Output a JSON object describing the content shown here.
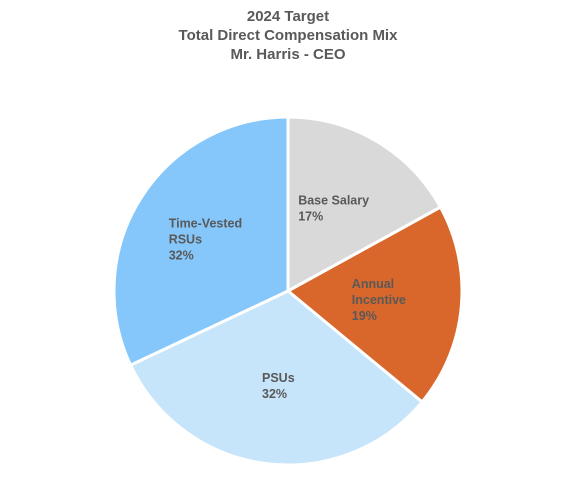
{
  "chart_data": {
    "type": "pie",
    "title": [
      "2024 Target",
      "Total Direct Compensation Mix",
      "Mr. Harris - CEO"
    ],
    "slices": [
      {
        "name": "Base Salary",
        "value": 17,
        "label_lines": [
          "Base Salary",
          "17%"
        ],
        "color": "#D9D9D9",
        "label_color": "#595959"
      },
      {
        "name": "Annual Incentive",
        "value": 19,
        "label_lines": [
          "Annual",
          "Incentive",
          "19%"
        ],
        "color": "#D9662A",
        "label_color": "#595959"
      },
      {
        "name": "PSUs",
        "value": 32,
        "label_lines": [
          "PSUs",
          "32%"
        ],
        "color": "#C6E4FA",
        "label_color": "#595959"
      },
      {
        "name": "Time-Vested RSUs",
        "value": 32,
        "label_lines": [
          "Time-Vested",
          "RSUs",
          "32%"
        ],
        "color": "#85C7FA",
        "label_color": "#595959"
      }
    ],
    "legend": "none",
    "start_angle_deg": 0,
    "direction": "clockwise"
  }
}
